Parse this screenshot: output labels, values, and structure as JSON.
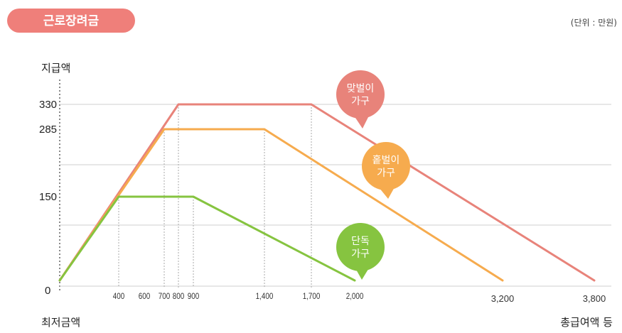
{
  "badge": {
    "label": "근로장려금",
    "color": "#ef7f7a"
  },
  "unit_label": "(단위 : 만원)",
  "chart_data": {
    "type": "line",
    "title": "근로장려금",
    "ylabel": "지급액",
    "xlabel": "총급여액 등",
    "x_origin_label": "최저금액",
    "y_origin_label": "0",
    "yticks": [
      150,
      285,
      330
    ],
    "xticks": [
      400,
      600,
      700,
      800,
      900,
      1400,
      1700,
      2000,
      3200,
      3800
    ],
    "ylim": [
      0,
      350
    ],
    "grid": true,
    "series": [
      {
        "name": "맞벌이 가구",
        "name_lines": [
          "맞벌이",
          "가구"
        ],
        "color": "#e8837a",
        "points": [
          [
            0,
            0
          ],
          [
            800,
            330
          ],
          [
            1700,
            330
          ],
          [
            3800,
            0
          ]
        ]
      },
      {
        "name": "홑벌이 가구",
        "name_lines": [
          "홑벌이",
          "가구"
        ],
        "color": "#f6ab4e",
        "points": [
          [
            0,
            0
          ],
          [
            700,
            285
          ],
          [
            1400,
            285
          ],
          [
            3200,
            0
          ]
        ]
      },
      {
        "name": "단독 가구",
        "name_lines": [
          "단독",
          "가구"
        ],
        "color": "#86c440",
        "points": [
          [
            0,
            0
          ],
          [
            400,
            150
          ],
          [
            900,
            150
          ],
          [
            2000,
            0
          ]
        ]
      }
    ]
  }
}
